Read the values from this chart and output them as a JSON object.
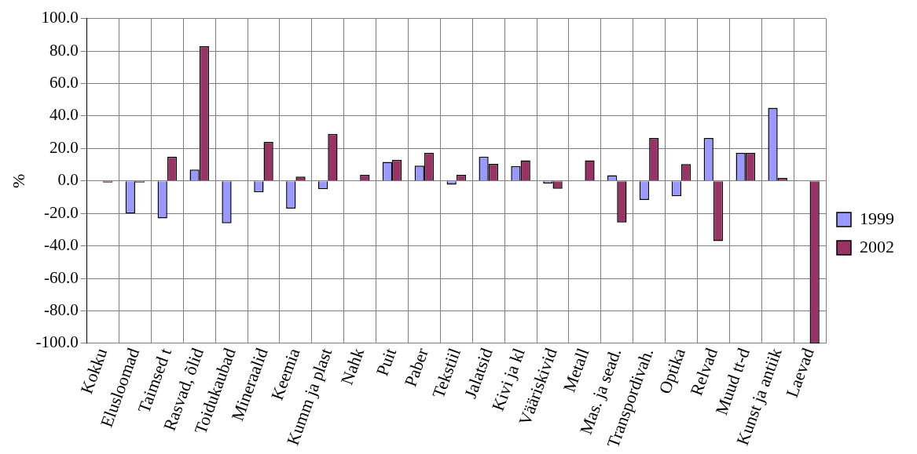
{
  "chart_data": {
    "type": "bar",
    "ylabel": "%",
    "categories": [
      "Kokku",
      "Elusloomad",
      "Taimsed t",
      "Rasvad, õlid",
      "Toidukaubad",
      "Mineraalid",
      "Keemia",
      "Kumm ja plast",
      "Nahk",
      "Puit",
      "Paber",
      "Tekstiil",
      "Jalatsid",
      "Kivi ja kl",
      "Vääriskivid",
      "Metall",
      "Mas. ja sead.",
      "Transpordivah.",
      "Optika",
      "Relvad",
      "Muud tt-d",
      "Kunst ja antiik",
      "Laevad"
    ],
    "series": [
      {
        "name": "1999",
        "color": "#9999ff",
        "values": [
          0,
          -20,
          -23,
          7,
          -26,
          -7,
          -17,
          -5,
          0,
          11.7,
          9.4,
          -2.3,
          15,
          9.2,
          -1.5,
          0,
          3.5,
          -11.7,
          -9.4,
          26.5,
          17.3,
          45,
          0
        ]
      },
      {
        "name": "2002",
        "color": "#993366",
        "values": [
          -1,
          -1,
          15,
          83,
          0,
          24,
          2.7,
          29,
          3.7,
          13,
          17.4,
          3.7,
          10.5,
          12.7,
          -4.8,
          12.7,
          -25.6,
          26.5,
          10.4,
          -37,
          17.3,
          2,
          -100
        ]
      }
    ],
    "ylim": [
      -100,
      100
    ],
    "yticks": [
      {
        "value": -100,
        "label": "-100.0"
      },
      {
        "value": -80,
        "label": "-80.0"
      },
      {
        "value": -60,
        "label": "-60.0"
      },
      {
        "value": -40,
        "label": "-40.0"
      },
      {
        "value": -20,
        "label": "-20.0"
      },
      {
        "value": 0,
        "label": "0.0"
      },
      {
        "value": 20,
        "label": "20.0"
      },
      {
        "value": 40,
        "label": "40.0"
      },
      {
        "value": 60,
        "label": "60.0"
      },
      {
        "value": 80,
        "label": "80.0"
      },
      {
        "value": 100,
        "label": "100.0"
      }
    ],
    "grid": true,
    "legend": "right"
  }
}
